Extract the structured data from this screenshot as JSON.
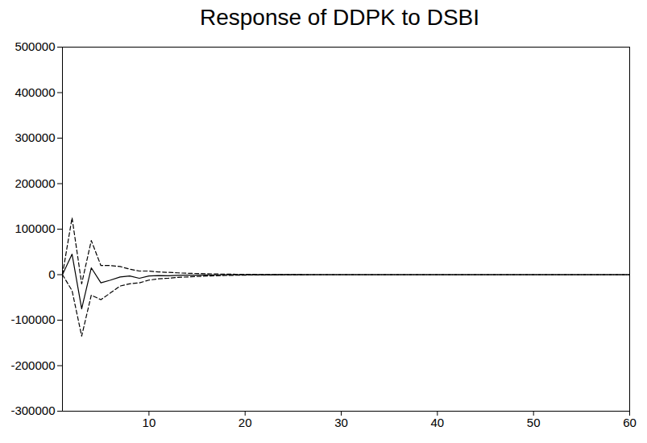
{
  "chart_data": {
    "type": "line",
    "title": "Response of DDPK to DSBI",
    "x": [
      1,
      2,
      3,
      4,
      5,
      6,
      7,
      8,
      9,
      10,
      11,
      12,
      13,
      14,
      15,
      16,
      17,
      18,
      19,
      20,
      21,
      22,
      23,
      24,
      25,
      26,
      27,
      28,
      29,
      30,
      31,
      32,
      33,
      34,
      35,
      36,
      37,
      38,
      39,
      40,
      41,
      42,
      43,
      44,
      45,
      46,
      47,
      48,
      49,
      50,
      51,
      52,
      53,
      54,
      55,
      56,
      57,
      58,
      59,
      60
    ],
    "series": [
      {
        "color": "#000000",
        "line_style": "solid",
        "values": [
          0,
          45000,
          -75000,
          15000,
          -18000,
          -12000,
          -5000,
          -3000,
          -8000,
          -3000,
          -2000,
          -2500,
          -1500,
          -1000,
          -1000,
          -600,
          -400,
          -300,
          -200,
          -150,
          -100,
          -80,
          -50,
          -30,
          -20,
          -10,
          0,
          0,
          0,
          0,
          0,
          0,
          0,
          0,
          0,
          0,
          0,
          0,
          0,
          0,
          0,
          0,
          0,
          0,
          0,
          0,
          0,
          0,
          0,
          0,
          0,
          0,
          0,
          0,
          0,
          0,
          0,
          0,
          0,
          0
        ]
      },
      {
        "color": "#000000",
        "line_style": "dashed",
        "values": [
          0,
          125000,
          -20000,
          75000,
          20000,
          20000,
          18000,
          12000,
          8000,
          8000,
          6000,
          5000,
          4000,
          3000,
          2500,
          2000,
          1500,
          1200,
          900,
          700,
          500,
          400,
          300,
          200,
          100,
          50,
          0,
          0,
          0,
          0,
          0,
          0,
          0,
          0,
          0,
          0,
          0,
          0,
          0,
          0,
          0,
          0,
          0,
          0,
          0,
          0,
          0,
          0,
          0,
          0,
          0,
          0,
          0,
          0,
          0,
          0,
          0,
          0,
          0,
          0
        ]
      },
      {
        "color": "#000000",
        "line_style": "dashed",
        "values": [
          0,
          -35000,
          -135000,
          -45000,
          -55000,
          -40000,
          -25000,
          -20000,
          -18000,
          -12000,
          -9000,
          -8000,
          -6000,
          -5000,
          -4000,
          -3000,
          -2300,
          -1800,
          -1300,
          -1000,
          -700,
          -500,
          -400,
          -250,
          -150,
          -80,
          0,
          0,
          0,
          0,
          0,
          0,
          0,
          0,
          0,
          0,
          0,
          0,
          0,
          0,
          0,
          0,
          0,
          0,
          0,
          0,
          0,
          0,
          0,
          0,
          0,
          0,
          0,
          0,
          0,
          0,
          0,
          0,
          0,
          0
        ]
      }
    ],
    "xlim": [
      1,
      60
    ],
    "xticks": [
      10,
      20,
      30,
      40,
      50,
      60
    ],
    "ylim": [
      -300000,
      500000
    ],
    "yticks": [
      -300000,
      -200000,
      -100000,
      0,
      100000,
      200000,
      300000,
      400000,
      500000
    ],
    "grid": false
  }
}
